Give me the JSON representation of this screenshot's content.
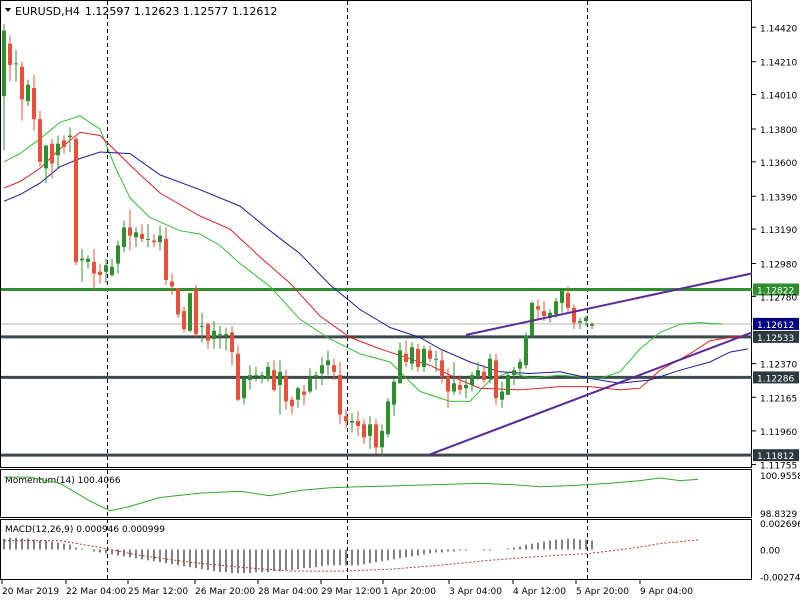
{
  "chart_data": {
    "type": "candlestick",
    "symbol": "EURUSD,H4",
    "ohlc_header": "1.12597 1.12623 1.12577 1.12612",
    "price_axis": {
      "ticks": [
        "1.14420",
        "1.14210",
        "1.14010",
        "1.13800",
        "1.13600",
        "1.13390",
        "1.13190",
        "1.12980",
        "1.12780",
        "1.12370",
        "1.12165",
        "1.11960",
        "1.11755"
      ],
      "ylim": [
        1.1174,
        1.1458
      ]
    },
    "levels": [
      {
        "label": "1.12822",
        "price": 1.12822,
        "style": "green"
      },
      {
        "label": "1.12533",
        "price": 1.12533,
        "style": "dark"
      },
      {
        "label": "1.12286",
        "price": 1.12286,
        "style": "dark"
      },
      {
        "label": "1.11812",
        "price": 1.11812,
        "style": "dark"
      }
    ],
    "current_price": {
      "label": "1.12612",
      "price": 1.12612
    },
    "channel_upper": [
      [
        466,
        1.12545
      ],
      [
        752,
        1.1292
      ]
    ],
    "channel_lower": [
      [
        428,
        1.11812
      ],
      [
        752,
        1.1256
      ]
    ],
    "x_labels": [
      "20 Mar 2019",
      "22 Mar 04:00",
      "25 Mar 12:00",
      "26 Mar 20:00",
      "28 Mar 04:00",
      "29 Mar 12:00",
      "1 Apr 20:00",
      "3 Apr 04:00",
      "4 Apr 12:00",
      "5 Apr 20:00",
      "9 Apr 04:00"
    ],
    "candles": [
      [
        1.14,
        1.1444,
        1.1367,
        1.144
      ],
      [
        1.1432,
        1.1437,
        1.1409,
        1.1419
      ],
      [
        1.142,
        1.1428,
        1.1409,
        1.142
      ],
      [
        1.1418,
        1.1421,
        1.1385,
        1.1398
      ],
      [
        1.1397,
        1.141,
        1.1394,
        1.1407
      ],
      [
        1.1405,
        1.1413,
        1.1379,
        1.1386
      ],
      [
        1.1386,
        1.1391,
        1.1357,
        1.136
      ],
      [
        1.1356,
        1.137,
        1.1347,
        1.137
      ],
      [
        1.1371,
        1.1374,
        1.135,
        1.1359
      ],
      [
        1.1364,
        1.1376,
        1.1356,
        1.1371
      ],
      [
        1.1373,
        1.1376,
        1.1365,
        1.1369
      ],
      [
        1.1375,
        1.1381,
        1.1366,
        1.1376
      ],
      [
        1.1374,
        1.1375,
        1.1297,
        1.1299
      ],
      [
        1.13,
        1.1307,
        1.1287,
        1.1301
      ],
      [
        1.1299,
        1.1303,
        1.1295,
        1.1301
      ],
      [
        1.1299,
        1.1307,
        1.1282,
        1.1292
      ],
      [
        1.1293,
        1.1298,
        1.1286,
        1.1291
      ],
      [
        1.1293,
        1.1301,
        1.1286,
        1.1297
      ],
      [
        1.1291,
        1.1301,
        1.129,
        1.1296
      ],
      [
        1.1298,
        1.1312,
        1.1292,
        1.1309
      ],
      [
        1.1308,
        1.1324,
        1.1305,
        1.132
      ],
      [
        1.132,
        1.1331,
        1.1306,
        1.1315
      ],
      [
        1.1314,
        1.132,
        1.1308,
        1.1317
      ],
      [
        1.1316,
        1.1322,
        1.1311,
        1.1313
      ],
      [
        1.1313,
        1.1322,
        1.1308,
        1.1313
      ],
      [
        1.1312,
        1.1316,
        1.1308,
        1.1311
      ],
      [
        1.1311,
        1.1321,
        1.1306,
        1.1315
      ],
      [
        1.1313,
        1.132,
        1.1285,
        1.1288
      ],
      [
        1.1287,
        1.1292,
        1.1279,
        1.1284
      ],
      [
        1.1283,
        1.1283,
        1.1265,
        1.1267
      ],
      [
        1.1269,
        1.1272,
        1.1256,
        1.1258
      ],
      [
        1.1257,
        1.128,
        1.1256,
        1.128
      ],
      [
        1.1282,
        1.1285,
        1.1253,
        1.1255
      ],
      [
        1.126,
        1.1268,
        1.125,
        1.126
      ],
      [
        1.1261,
        1.1262,
        1.1246,
        1.1251
      ],
      [
        1.1252,
        1.1263,
        1.1246,
        1.1257
      ],
      [
        1.1255,
        1.126,
        1.1246,
        1.1255
      ],
      [
        1.1254,
        1.1259,
        1.1245,
        1.1255
      ],
      [
        1.1256,
        1.126,
        1.1236,
        1.1244
      ],
      [
        1.1243,
        1.1248,
        1.1214,
        1.1215
      ],
      [
        1.1216,
        1.1229,
        1.1212,
        1.1228
      ],
      [
        1.1227,
        1.1236,
        1.1221,
        1.123
      ],
      [
        1.123,
        1.1235,
        1.1226,
        1.123
      ],
      [
        1.1228,
        1.1232,
        1.1225,
        1.123
      ],
      [
        1.1228,
        1.1238,
        1.1226,
        1.1235
      ],
      [
        1.1233,
        1.1239,
        1.122,
        1.1221
      ],
      [
        1.1224,
        1.1239,
        1.1206,
        1.1232
      ],
      [
        1.1229,
        1.1233,
        1.1209,
        1.1214
      ],
      [
        1.1215,
        1.1217,
        1.1206,
        1.1211
      ],
      [
        1.1215,
        1.1223,
        1.121,
        1.1222
      ],
      [
        1.122,
        1.1224,
        1.1212,
        1.1218
      ],
      [
        1.122,
        1.1234,
        1.1219,
        1.1228
      ],
      [
        1.1229,
        1.1232,
        1.1221,
        1.123
      ],
      [
        1.1231,
        1.1241,
        1.1224,
        1.1236
      ],
      [
        1.1236,
        1.1245,
        1.123,
        1.1239
      ],
      [
        1.1236,
        1.124,
        1.1227,
        1.1232
      ],
      [
        1.123,
        1.1238,
        1.12,
        1.1206
      ],
      [
        1.1205,
        1.1209,
        1.1198,
        1.1202
      ],
      [
        1.1201,
        1.1207,
        1.1195,
        1.1202
      ],
      [
        1.1202,
        1.1208,
        1.1193,
        1.1199
      ],
      [
        1.12,
        1.1203,
        1.1188,
        1.1192
      ],
      [
        1.1193,
        1.1205,
        1.1185,
        1.12
      ],
      [
        1.12,
        1.1203,
        1.1182,
        1.1186
      ],
      [
        1.1186,
        1.12,
        1.1181,
        1.1196
      ],
      [
        1.1194,
        1.1216,
        1.1192,
        1.1214
      ],
      [
        1.1212,
        1.1228,
        1.1205,
        1.1226
      ],
      [
        1.1225,
        1.125,
        1.1225,
        1.1245
      ],
      [
        1.1243,
        1.1251,
        1.1235,
        1.1238
      ],
      [
        1.1237,
        1.125,
        1.1233,
        1.1247
      ],
      [
        1.1246,
        1.1249,
        1.1232,
        1.1235
      ],
      [
        1.1235,
        1.1248,
        1.1232,
        1.1246
      ],
      [
        1.1245,
        1.1248,
        1.1238,
        1.124
      ],
      [
        1.124,
        1.1245,
        1.1232,
        1.124
      ],
      [
        1.1239,
        1.1245,
        1.1225,
        1.1229
      ],
      [
        1.1229,
        1.1234,
        1.121,
        1.122
      ],
      [
        1.122,
        1.1238,
        1.1218,
        1.1225
      ],
      [
        1.1224,
        1.123,
        1.1218,
        1.1221
      ],
      [
        1.1222,
        1.1228,
        1.1216,
        1.1224
      ],
      [
        1.1224,
        1.1232,
        1.122,
        1.123
      ],
      [
        1.1229,
        1.1238,
        1.1227,
        1.1233
      ],
      [
        1.1232,
        1.1236,
        1.1225,
        1.1227
      ],
      [
        1.1229,
        1.1243,
        1.1225,
        1.124
      ],
      [
        1.1239,
        1.1243,
        1.1212,
        1.1216
      ],
      [
        1.1215,
        1.1226,
        1.121,
        1.122
      ],
      [
        1.1218,
        1.1232,
        1.1218,
        1.123
      ],
      [
        1.123,
        1.1235,
        1.1224,
        1.1233
      ],
      [
        1.1234,
        1.124,
        1.1228,
        1.1238
      ],
      [
        1.1236,
        1.1256,
        1.1234,
        1.1254
      ],
      [
        1.1254,
        1.1275,
        1.1253,
        1.1274
      ],
      [
        1.1272,
        1.1276,
        1.1264,
        1.127
      ],
      [
        1.1269,
        1.1275,
        1.1263,
        1.1266
      ],
      [
        1.1265,
        1.127,
        1.1262,
        1.1268
      ],
      [
        1.1267,
        1.1277,
        1.1265,
        1.1275
      ],
      [
        1.1274,
        1.1283,
        1.1268,
        1.1282
      ],
      [
        1.128,
        1.1284,
        1.1268,
        1.1271
      ],
      [
        1.1271,
        1.1273,
        1.1258,
        1.1262
      ],
      [
        1.1262,
        1.1265,
        1.1258,
        1.1263
      ],
      [
        1.1263,
        1.1266,
        1.126,
        1.1265
      ],
      [
        1.126,
        1.1262,
        1.1258,
        1.1261
      ]
    ],
    "moving_averages": [
      {
        "color": "#2fbf2f",
        "points": [
          [
            4,
            1.136
          ],
          [
            20,
            1.1365
          ],
          [
            40,
            1.1374
          ],
          [
            60,
            1.1384
          ],
          [
            80,
            1.1388
          ],
          [
            100,
            1.138
          ],
          [
            115,
            1.1357
          ],
          [
            130,
            1.1338
          ],
          [
            150,
            1.1326
          ],
          [
            180,
            1.1318
          ],
          [
            200,
            1.1316
          ],
          [
            220,
            1.1309
          ],
          [
            240,
            1.1298
          ],
          [
            270,
            1.1284
          ],
          [
            300,
            1.1264
          ],
          [
            330,
            1.1252
          ],
          [
            360,
            1.1243
          ],
          [
            390,
            1.1238
          ],
          [
            420,
            1.122
          ],
          [
            450,
            1.1214
          ],
          [
            470,
            1.1214
          ],
          [
            490,
            1.1227
          ],
          [
            510,
            1.1232
          ],
          [
            530,
            1.1228
          ],
          [
            560,
            1.123
          ],
          [
            580,
            1.1229
          ],
          [
            600,
            1.1228
          ],
          [
            620,
            1.1232
          ],
          [
            640,
            1.1246
          ],
          [
            660,
            1.1256
          ],
          [
            680,
            1.1261
          ],
          [
            700,
            1.1262
          ],
          [
            722,
            1.1261
          ]
        ]
      },
      {
        "color": "#e02020",
        "points": [
          [
            4,
            1.1344
          ],
          [
            20,
            1.1348
          ],
          [
            40,
            1.1356
          ],
          [
            60,
            1.1368
          ],
          [
            80,
            1.1378
          ],
          [
            100,
            1.1376
          ],
          [
            130,
            1.1358
          ],
          [
            160,
            1.1341
          ],
          [
            200,
            1.1327
          ],
          [
            230,
            1.1319
          ],
          [
            260,
            1.1302
          ],
          [
            290,
            1.1286
          ],
          [
            320,
            1.1266
          ],
          [
            350,
            1.1253
          ],
          [
            380,
            1.1246
          ],
          [
            410,
            1.124
          ],
          [
            430,
            1.1236
          ],
          [
            460,
            1.1227
          ],
          [
            480,
            1.1222
          ],
          [
            520,
            1.1221
          ],
          [
            560,
            1.1223
          ],
          [
            590,
            1.1223
          ],
          [
            620,
            1.1221
          ],
          [
            640,
            1.1222
          ],
          [
            660,
            1.1233
          ],
          [
            690,
            1.1243
          ],
          [
            710,
            1.1251
          ],
          [
            740,
            1.1254
          ]
        ]
      },
      {
        "color": "#1a1a9a",
        "points": [
          [
            4,
            1.1336
          ],
          [
            20,
            1.134
          ],
          [
            40,
            1.1347
          ],
          [
            60,
            1.1357
          ],
          [
            80,
            1.1362
          ],
          [
            100,
            1.1366
          ],
          [
            130,
            1.1365
          ],
          [
            160,
            1.1352
          ],
          [
            200,
            1.1343
          ],
          [
            240,
            1.1333
          ],
          [
            270,
            1.1318
          ],
          [
            300,
            1.1304
          ],
          [
            330,
            1.1285
          ],
          [
            360,
            1.127
          ],
          [
            390,
            1.1259
          ],
          [
            420,
            1.1253
          ],
          [
            440,
            1.1246
          ],
          [
            470,
            1.1238
          ],
          [
            500,
            1.1232
          ],
          [
            530,
            1.1231
          ],
          [
            560,
            1.1232
          ],
          [
            590,
            1.1228
          ],
          [
            620,
            1.1225
          ],
          [
            650,
            1.1227
          ],
          [
            680,
            1.1233
          ],
          [
            710,
            1.1238
          ],
          [
            730,
            1.1244
          ],
          [
            748,
            1.1246
          ]
        ]
      }
    ],
    "momentum": {
      "label": "Momentum(14) 100.4066",
      "ticks": [
        "100.9558",
        "98.8329"
      ],
      "ylim": [
        98.6,
        101.25
      ],
      "color": "#2fa82f",
      "points": [
        [
          4,
          100.85
        ],
        [
          30,
          100.85
        ],
        [
          60,
          100.5
        ],
        [
          90,
          99.5
        ],
        [
          110,
          98.95
        ],
        [
          130,
          99.2
        ],
        [
          160,
          99.7
        ],
        [
          200,
          99.95
        ],
        [
          240,
          100.05
        ],
        [
          270,
          99.8
        ],
        [
          300,
          100.1
        ],
        [
          330,
          100.25
        ],
        [
          360,
          100.3
        ],
        [
          390,
          100.35
        ],
        [
          420,
          100.4
        ],
        [
          450,
          100.45
        ],
        [
          480,
          100.5
        ],
        [
          500,
          100.45
        ],
        [
          520,
          100.4
        ],
        [
          540,
          100.3
        ],
        [
          560,
          100.35
        ],
        [
          580,
          100.4
        ],
        [
          610,
          100.5
        ],
        [
          640,
          100.65
        ],
        [
          660,
          100.8
        ],
        [
          680,
          100.65
        ],
        [
          698,
          100.72
        ]
      ]
    },
    "macd": {
      "label": "MACD(12,26,9) 0.000946 0.000999",
      "ticks": [
        "0.002696",
        "0.00",
        "-0.002748"
      ],
      "ylim": [
        -0.003,
        0.003
      ],
      "histogram": [
        0.0011,
        0.0012,
        0.0012,
        0.0011,
        0.0011,
        0.001,
        0.0009,
        0.0009,
        0.0008,
        0.0007,
        0.0006,
        0.0005,
        0.0002,
        0.0001,
        0.0,
        -0.0002,
        -0.0003,
        -0.0004,
        -0.0005,
        -0.0006,
        -0.0007,
        -0.0008,
        -0.0009,
        -0.001,
        -0.0011,
        -0.0012,
        -0.0013,
        -0.0014,
        -0.0015,
        -0.0016,
        -0.0017,
        -0.0018,
        -0.0019,
        -0.002,
        -0.0021,
        -0.0022,
        -0.0023,
        -0.0023,
        -0.0024,
        -0.0024,
        -0.0024,
        -0.0024,
        -0.0023,
        -0.0023,
        -0.0023,
        -0.0022,
        -0.0022,
        -0.0021,
        -0.0021,
        -0.002,
        -0.0019,
        -0.0019,
        -0.0018,
        -0.0017,
        -0.0016,
        -0.0016,
        -0.0016,
        -0.0016,
        -0.0016,
        -0.0016,
        -0.0015,
        -0.0014,
        -0.0013,
        -0.0012,
        -0.0011,
        -0.001,
        -0.0009,
        -0.0008,
        -0.0007,
        -0.0006,
        -0.0005,
        -0.0004,
        -0.0003,
        -0.0003,
        -0.0002,
        -0.0002,
        -0.0001,
        -0.0001,
        0.0,
        0.0,
        -0.0001,
        -0.0001,
        0.0,
        0.0,
        0.0001,
        0.0002,
        0.0003,
        0.0005,
        0.0006,
        0.0007,
        0.0008,
        0.0009,
        0.001,
        0.001,
        0.0011,
        0.0011,
        0.001,
        0.001,
        0.0009
      ],
      "signal_color": "#c03030",
      "signal": [
        [
          4,
          0.0009
        ],
        [
          60,
          0.0009
        ],
        [
          100,
          0.0002
        ],
        [
          140,
          -0.0006
        ],
        [
          190,
          -0.0013
        ],
        [
          240,
          -0.0018
        ],
        [
          290,
          -0.0022
        ],
        [
          340,
          -0.0022
        ],
        [
          390,
          -0.002
        ],
        [
          440,
          -0.0016
        ],
        [
          490,
          -0.0011
        ],
        [
          540,
          -0.0007
        ],
        [
          590,
          -0.0004
        ],
        [
          630,
          0.0001
        ],
        [
          660,
          0.0006
        ],
        [
          700,
          0.001
        ]
      ]
    }
  }
}
